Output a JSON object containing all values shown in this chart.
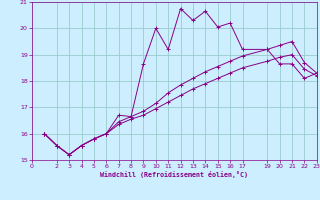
{
  "xlabel": "Windchill (Refroidissement éolien,°C)",
  "xlim": [
    0,
    23
  ],
  "ylim": [
    15,
    21
  ],
  "yticks": [
    15,
    16,
    17,
    18,
    19,
    20,
    21
  ],
  "xticks": [
    0,
    2,
    3,
    4,
    5,
    6,
    7,
    8,
    9,
    10,
    11,
    12,
    13,
    14,
    15,
    16,
    17,
    19,
    20,
    21,
    22,
    23
  ],
  "bg_color": "#cceeff",
  "grid_color": "#99cccc",
  "line_color": "#880088",
  "series": [
    {
      "x": [
        1,
        2,
        3,
        4,
        5,
        6,
        7,
        8,
        9,
        10,
        11,
        12,
        13,
        14,
        15,
        16,
        17,
        19,
        20,
        21,
        22,
        23
      ],
      "y": [
        16.0,
        15.55,
        15.2,
        15.55,
        15.8,
        16.0,
        16.7,
        16.65,
        18.65,
        20.0,
        19.2,
        20.75,
        20.3,
        20.65,
        20.05,
        20.2,
        19.2,
        19.2,
        18.65,
        18.65,
        18.1,
        18.3
      ]
    },
    {
      "x": [
        1,
        2,
        3,
        4,
        5,
        6,
        7,
        8,
        9,
        10,
        11,
        12,
        13,
        14,
        15,
        16,
        17,
        19,
        20,
        21,
        22,
        23
      ],
      "y": [
        16.0,
        15.55,
        15.2,
        15.55,
        15.8,
        16.0,
        16.45,
        16.65,
        16.85,
        17.15,
        17.55,
        17.85,
        18.1,
        18.35,
        18.55,
        18.75,
        18.95,
        19.2,
        19.35,
        19.5,
        18.7,
        18.3
      ]
    },
    {
      "x": [
        1,
        2,
        3,
        4,
        5,
        6,
        7,
        8,
        9,
        10,
        11,
        12,
        13,
        14,
        15,
        16,
        17,
        19,
        20,
        21,
        22,
        23
      ],
      "y": [
        16.0,
        15.55,
        15.2,
        15.55,
        15.8,
        16.0,
        16.35,
        16.55,
        16.7,
        16.95,
        17.2,
        17.45,
        17.7,
        17.9,
        18.1,
        18.3,
        18.5,
        18.75,
        18.9,
        19.0,
        18.45,
        18.2
      ]
    }
  ]
}
